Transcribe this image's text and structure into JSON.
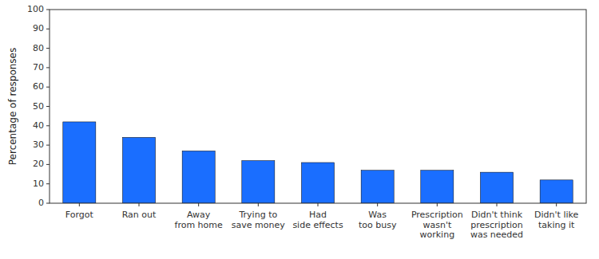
{
  "chart_data": {
    "type": "bar",
    "categories": [
      "Forgot",
      "Ran out",
      "Away\nfrom home",
      "Trying to\nsave money",
      "Had\nside effects",
      "Was\ntoo busy",
      "Prescription\nwasn't\nworking",
      "Didn't think\nprescription\nwas needed",
      "Didn't like\ntaking it"
    ],
    "values": [
      42,
      34,
      27,
      22,
      21,
      17,
      17,
      16,
      12
    ],
    "color": "#1a6eff",
    "ylabel": "Percentage of responses",
    "ylim": [
      0,
      100
    ],
    "yticks": [
      0,
      10,
      20,
      30,
      40,
      50,
      60,
      70,
      80,
      90,
      100
    ],
    "grid": false
  }
}
